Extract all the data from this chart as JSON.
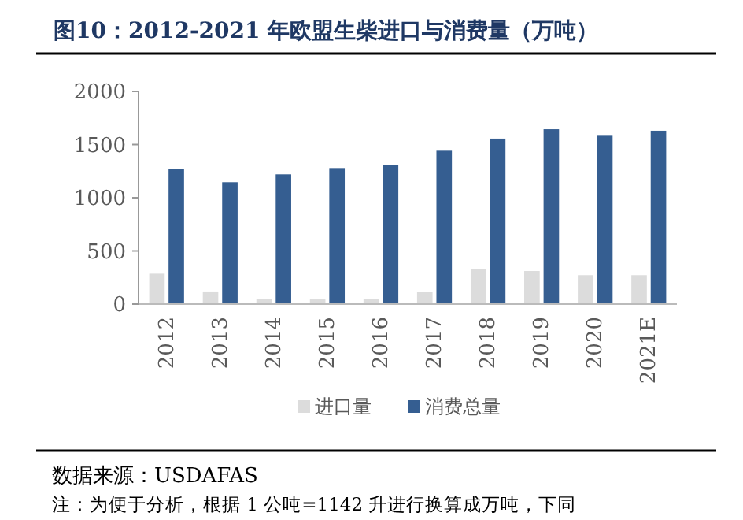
{
  "chart_data": {
    "type": "bar",
    "title": "图10：2012-2021 年欧盟生柴进口与消费量（万吨）",
    "categories": [
      "2012",
      "2013",
      "2014",
      "2015",
      "2016",
      "2017",
      "2018",
      "2019",
      "2020",
      "2021E"
    ],
    "series": [
      {
        "name": "进口量",
        "color": "#dcdcdc",
        "values": [
          286,
          119,
          49,
          44,
          49,
          114,
          331,
          311,
          272,
          272
        ]
      },
      {
        "name": "消费总量",
        "color": "#355e91",
        "values": [
          1269,
          1146,
          1220,
          1279,
          1304,
          1442,
          1556,
          1644,
          1590,
          1630
        ]
      }
    ],
    "ylim": [
      0,
      2000
    ],
    "yticks": [
      0,
      500,
      1000,
      1500,
      2000
    ],
    "grid": false,
    "legend": "bottom",
    "annotations": [
      "数据来源：USDAFAS",
      "注：为便于分析，根据 1 公吨=1142 升进行换算成万吨，下同"
    ]
  }
}
